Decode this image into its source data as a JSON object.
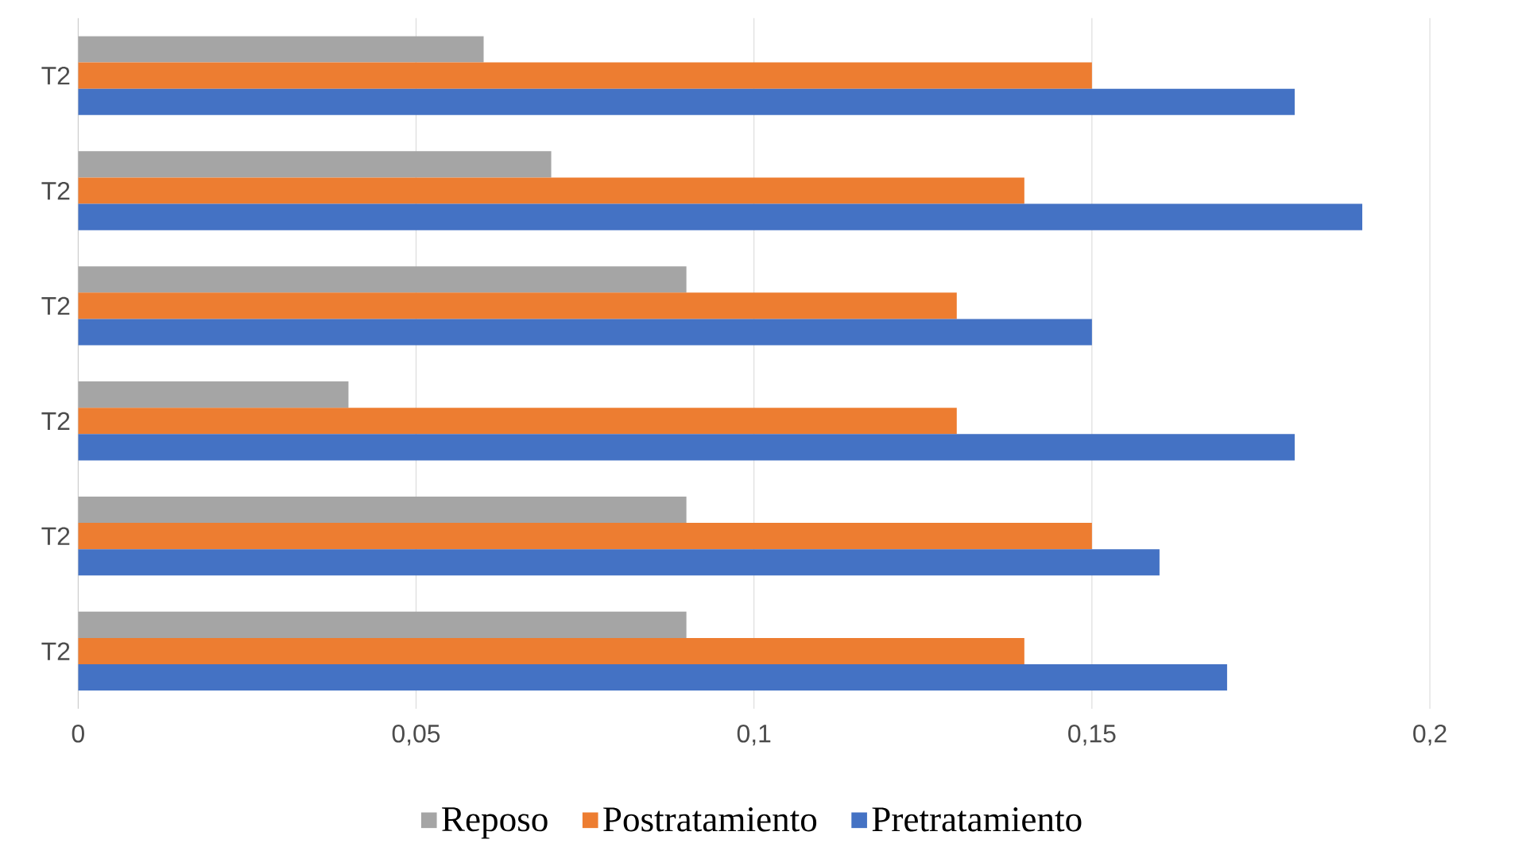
{
  "chart_data": {
    "type": "bar",
    "orientation": "horizontal",
    "categories": [
      "T2",
      "T2",
      "T2",
      "T2",
      "T2",
      "T2"
    ],
    "series": [
      {
        "name": "Reposo",
        "color": "#a5a5a5",
        "values": [
          0.06,
          0.07,
          0.09,
          0.04,
          0.09,
          0.09
        ]
      },
      {
        "name": "Postratamiento",
        "color": "#ed7d31",
        "values": [
          0.15,
          0.14,
          0.13,
          0.13,
          0.15,
          0.14
        ]
      },
      {
        "name": "Pretratamiento",
        "color": "#4472c4",
        "values": [
          0.18,
          0.19,
          0.15,
          0.18,
          0.16,
          0.17
        ]
      }
    ],
    "xlim": [
      0,
      0.2
    ],
    "xticks": [
      0,
      {
        "value": 0.05,
        "label": "0,05"
      },
      {
        "value": 0.1,
        "label": "0,1"
      },
      {
        "value": 0.15,
        "label": "0,15"
      },
      {
        "value": 0.2,
        "label": "0,2"
      }
    ],
    "grid": "x",
    "legend": "bottom"
  }
}
